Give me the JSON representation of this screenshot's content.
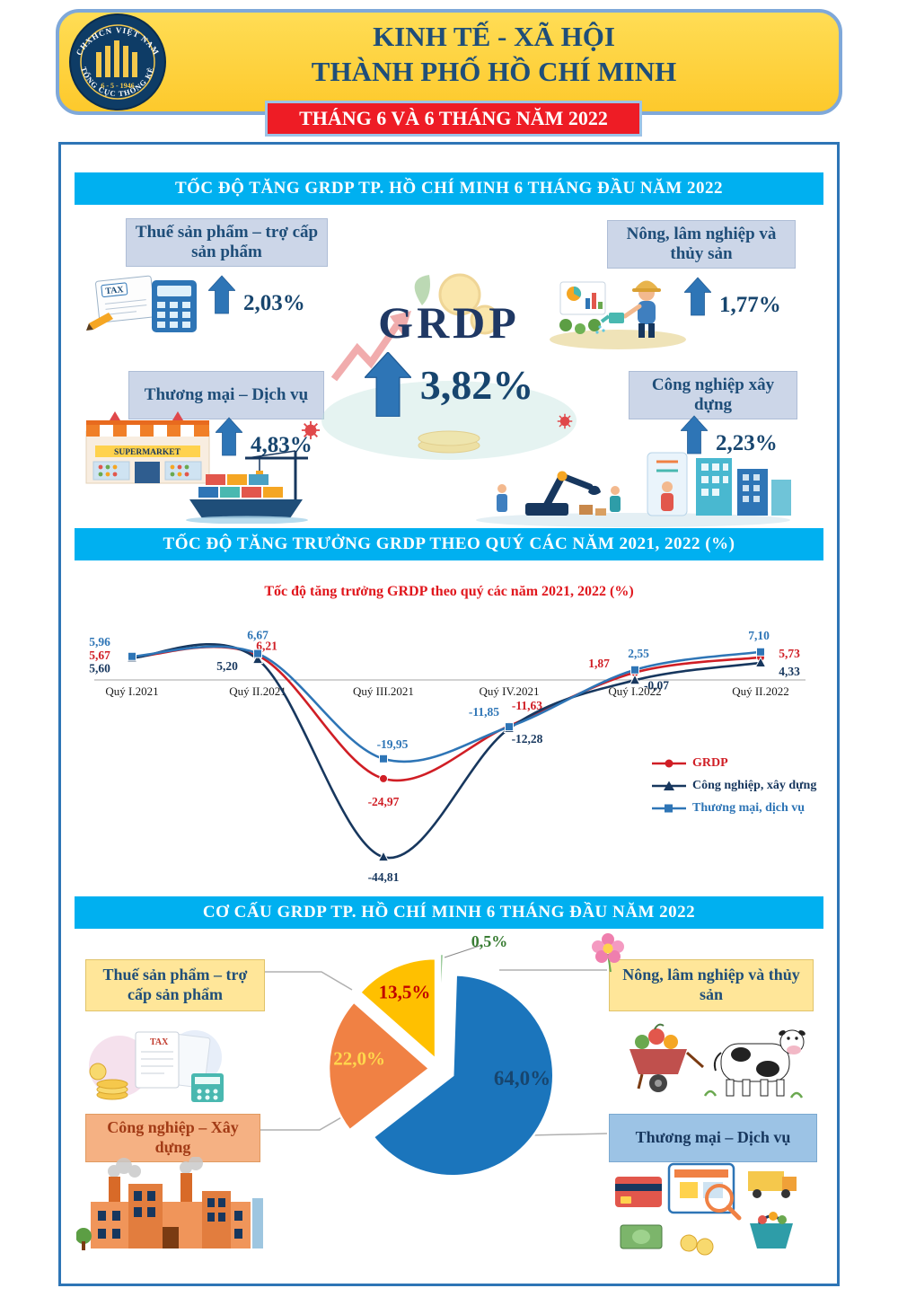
{
  "header": {
    "title1": "KINH TẾ - XÃ HỘI",
    "title2": "THÀNH PHỐ HỒ CHÍ MINH",
    "banner": "THÁNG 6 VÀ 6 THÁNG NĂM 2022",
    "logo": {
      "arc_top": "CHXHCN VIỆT NAM",
      "arc_bottom": "TỔNG CỤC THỐNG KÊ",
      "center": "6 - 5 - 1946"
    }
  },
  "section1": {
    "title": "TỐC ĐỘ TĂNG GRDP TP. HỒ CHÍ MINH 6 THÁNG ĐẦU NĂM 2022",
    "grdp": {
      "label": "GRDP",
      "value": "3,82%"
    },
    "items": [
      {
        "label": "Thuế sản phẩm – trợ cấp sản phẩm",
        "value": "2,03%"
      },
      {
        "label": "Nông, lâm nghiệp và thủy sản",
        "value": "1,77%"
      },
      {
        "label": "Thương mại – Dịch vụ",
        "value": "4,83%"
      },
      {
        "label": "Công nghiệp xây dựng",
        "value": "2,23%"
      }
    ],
    "tax_label": "TAX",
    "supermarket_label": "SUPERMARKET"
  },
  "section2": {
    "title": "TỐC ĐỘ TĂNG TRƯỞNG GRDP THEO QUÝ CÁC NĂM 2021, 2022 (%)"
  },
  "section3": {
    "title": "CƠ CẤU GRDP TP. HỒ CHÍ MINH 6 THÁNG ĐẦU NĂM 2022",
    "boxes": [
      {
        "label": "Thuế sản phẩm – trợ cấp sản phẩm"
      },
      {
        "label": "Nông, lâm nghiệp và thủy sản"
      },
      {
        "label": "Công nghiệp – Xây dựng"
      },
      {
        "label": "Thương mại – Dịch vụ"
      }
    ]
  },
  "chart_data": [
    {
      "type": "line",
      "title": "Tốc độ tăng trưởng GRDP theo quý các năm 2021, 2022 (%)",
      "categories": [
        "Quý I.2021",
        "Quý II.2021",
        "Quý III.2021",
        "Quý IV.2021",
        "Quý I.2022",
        "Quý II.2022"
      ],
      "series": [
        {
          "name": "GRDP",
          "marker": "circle",
          "color": "#d01e25",
          "values": [
            5.67,
            6.21,
            -24.97,
            -11.63,
            1.87,
            5.73
          ]
        },
        {
          "name": "Công nghiệp, xây dựng",
          "marker": "triangle",
          "color": "#17375e",
          "values": [
            5.6,
            5.2,
            -44.81,
            -12.28,
            -0.07,
            4.33
          ]
        },
        {
          "name": "Thương mại, dịch vụ",
          "marker": "square",
          "color": "#2e75b6",
          "values": [
            5.96,
            6.67,
            -19.95,
            -11.85,
            2.55,
            7.1
          ]
        }
      ],
      "ylim": [
        -50,
        12
      ],
      "grid": false,
      "legend_position": "middle-right"
    },
    {
      "type": "pie",
      "labels": [
        "Nông, lâm nghiệp và thủy sản",
        "Thương mại – Dịch vụ",
        "Công nghiệp – Xây dựng",
        "Thuế sản phẩm – trợ cấp sản phẩm"
      ],
      "values": [
        0.5,
        64.0,
        22.0,
        13.5
      ],
      "display": [
        "0,5%",
        "64,0%",
        "22,0%",
        "13,5%"
      ],
      "colors": [
        "#3f9b3f",
        "#1b75bc",
        "#f08144",
        "#ffc000"
      ],
      "label_colors": [
        "#3a7d34",
        "#17456e",
        "#ffd84d",
        "#c00000"
      ]
    }
  ]
}
